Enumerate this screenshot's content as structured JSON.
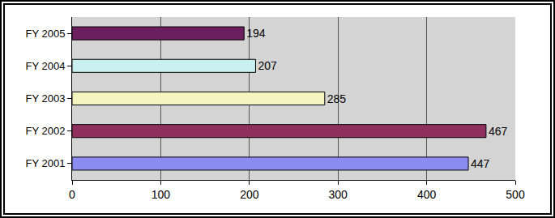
{
  "chart_data": {
    "type": "bar",
    "orientation": "horizontal",
    "categories": [
      "FY 2001",
      "FY 2002",
      "FY 2003",
      "FY 2004",
      "FY 2005"
    ],
    "values": [
      447,
      467,
      285,
      207,
      194
    ],
    "colors": [
      "#8c8cf0",
      "#8e2f5e",
      "#f5f5c0",
      "#c8f0f0",
      "#6b1f5e"
    ],
    "xlim": [
      0,
      500
    ],
    "xticks": [
      0,
      100,
      200,
      300,
      400,
      500
    ],
    "grid": true,
    "data_labels": true
  }
}
